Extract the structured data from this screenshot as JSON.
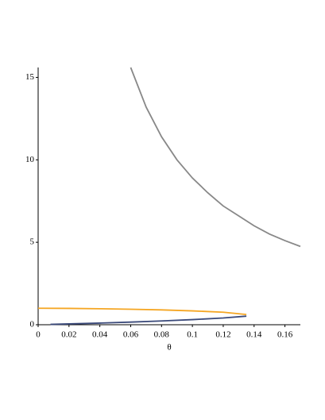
{
  "chart_data": {
    "type": "line",
    "xlabel": "θ",
    "xlim": [
      0,
      0.17
    ],
    "ylim": [
      0,
      15.6
    ],
    "xticks": [
      0,
      0.02,
      0.04,
      0.06,
      0.08,
      0.1,
      0.12,
      0.14,
      0.16
    ],
    "yticks": [
      0,
      5,
      10,
      15
    ],
    "series": [
      {
        "color": "#888888",
        "x": [
          0.06,
          0.07,
          0.08,
          0.09,
          0.1,
          0.11,
          0.12,
          0.13,
          0.14,
          0.15,
          0.16,
          0.17
        ],
        "values": [
          15.6,
          13.2,
          11.4,
          10.0,
          8.9,
          8.0,
          7.2,
          6.6,
          6.0,
          5.5,
          5.1,
          4.75
        ]
      },
      {
        "color": "#f5a623",
        "x": [
          0,
          0.02,
          0.04,
          0.06,
          0.08,
          0.1,
          0.12,
          0.135
        ],
        "values": [
          1.0,
          0.99,
          0.97,
          0.94,
          0.9,
          0.84,
          0.76,
          0.62
        ]
      },
      {
        "color": "#3b4a7a",
        "x": [
          0.008,
          0.02,
          0.04,
          0.06,
          0.08,
          0.1,
          0.12,
          0.135
        ],
        "values": [
          0.02,
          0.05,
          0.1,
          0.16,
          0.23,
          0.31,
          0.41,
          0.52
        ]
      }
    ]
  }
}
